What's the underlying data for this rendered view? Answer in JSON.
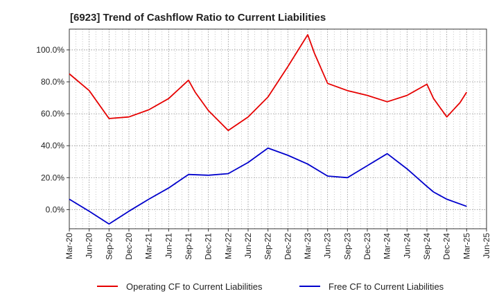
{
  "chart_data": {
    "type": "line",
    "title": "[6923]  Trend of Cashflow Ratio to Current Liabilities",
    "xlabel": "",
    "ylabel": "",
    "ylim": [
      -12,
      113
    ],
    "y_ticks": [
      0,
      20,
      40,
      60,
      80,
      100
    ],
    "y_tick_labels": [
      "0.0%",
      "20.0%",
      "40.0%",
      "60.0%",
      "80.0%",
      "100.0%"
    ],
    "categories": [
      "Mar-20",
      "Jun-20",
      "Sep-20",
      "Dec-20",
      "Mar-21",
      "Jun-21",
      "Sep-21",
      "Dec-21",
      "Mar-22",
      "Jun-22",
      "Sep-22",
      "Dec-22",
      "Mar-23",
      "Jun-23",
      "Sep-23",
      "Dec-23",
      "Mar-24",
      "Jun-24",
      "Sep-24",
      "Dec-24",
      "Mar-25",
      "Jun-25"
    ],
    "grid": true,
    "legend_position": "bottom",
    "series": [
      {
        "name": "Operating CF to Current Liabilities",
        "color": "#e60000",
        "x": [
          "Mar-20",
          "Jun-20",
          "Sep-20",
          "Dec-20",
          "Mar-21",
          "Jun-21",
          "Sep-21",
          "Oct-21",
          "Dec-21",
          "Mar-22",
          "Jun-22",
          "Sep-22",
          "Dec-22",
          "Mar-23",
          "Apr-23",
          "Jun-23",
          "Sep-23",
          "Dec-23",
          "Mar-24",
          "Jun-24",
          "Sep-24",
          "Oct-24",
          "Dec-24",
          "Feb-25",
          "Mar-25"
        ],
        "values": [
          85.0,
          74.5,
          57.0,
          58.0,
          62.5,
          69.5,
          81.0,
          73.5,
          62.0,
          49.5,
          58.0,
          70.5,
          89.5,
          109.5,
          98.0,
          79.0,
          74.5,
          71.5,
          67.5,
          71.5,
          78.5,
          69.5,
          58.0,
          67.0,
          73.5
        ]
      },
      {
        "name": "Free CF to Current Liabilities",
        "color": "#0000cc",
        "x": [
          "Mar-20",
          "Jun-20",
          "Sep-20",
          "Dec-20",
          "Mar-21",
          "Jun-21",
          "Sep-21",
          "Dec-21",
          "Mar-22",
          "Jun-22",
          "Sep-22",
          "Dec-22",
          "Mar-23",
          "Jun-23",
          "Sep-23",
          "Dec-23",
          "Mar-24",
          "Jun-24",
          "Sep-24",
          "Oct-24",
          "Dec-24",
          "Mar-25"
        ],
        "values": [
          6.5,
          -1.0,
          -9.0,
          -1.0,
          6.5,
          13.5,
          22.0,
          21.5,
          22.5,
          29.5,
          38.5,
          34.0,
          28.5,
          21.0,
          20.0,
          27.5,
          35.0,
          25.5,
          14.5,
          11.0,
          6.5,
          2.0
        ]
      }
    ]
  }
}
